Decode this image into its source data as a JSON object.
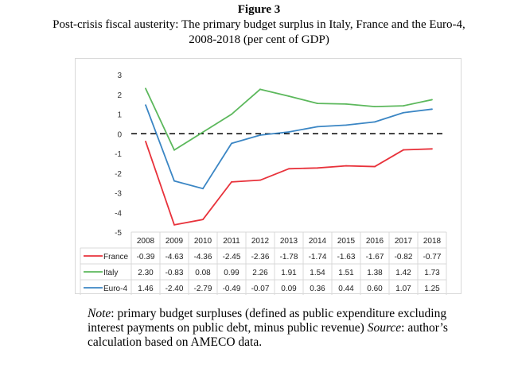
{
  "figure": {
    "label": "Figure 3",
    "title_line1": "Post-crisis fiscal austerity: The primary budget surplus in Italy, France and the Euro-4,",
    "title_line2": "2008-2018  (per cent of GDP)"
  },
  "note": {
    "note_label": "Note",
    "note_text": ": primary budget surpluses (defined as public expenditure excluding interest payments on public debt, minus public revenue) ",
    "source_label": "Source",
    "source_text": ": author’s calculation based on AMECO data."
  },
  "colors": {
    "France": "#e8323b",
    "Italy": "#5cb85c",
    "Euro-4": "#3b86c4",
    "zero_line": "#000000",
    "grid": "#d9d9d9"
  },
  "chart_data": {
    "type": "line",
    "title": "Post-crisis fiscal austerity: The primary budget surplus in Italy, France and the Euro-4, 2008-2018  (per cent of GDP)",
    "x": [
      "2008",
      "2009",
      "2010",
      "2011",
      "2012",
      "2013",
      "2014",
      "2015",
      "2016",
      "2017",
      "2018"
    ],
    "series": [
      {
        "name": "France",
        "values": [
          -0.39,
          -4.63,
          -4.36,
          -2.45,
          -2.36,
          -1.78,
          -1.74,
          -1.63,
          -1.67,
          -0.82,
          -0.77
        ]
      },
      {
        "name": "Italy",
        "values": [
          2.3,
          -0.83,
          0.08,
          0.99,
          2.26,
          1.91,
          1.54,
          1.51,
          1.38,
          1.42,
          1.73
        ]
      },
      {
        "name": "Euro-4",
        "values": [
          1.46,
          -2.4,
          -2.79,
          -0.49,
          -0.07,
          0.09,
          0.36,
          0.44,
          0.6,
          1.07,
          1.25
        ]
      }
    ],
    "yticks": [
      "3",
      "2",
      "1",
      "0",
      "-1",
      "-2",
      "-3",
      "-4",
      "-5"
    ],
    "ylim": [
      -5,
      3
    ],
    "zero_line": "dashed",
    "grid": false,
    "legend": "data-table-below",
    "table_values": {
      "France": [
        "-0.39",
        "-4.63",
        "-4.36",
        "-2.45",
        "-2.36",
        "-1.78",
        "-1.74",
        "-1.63",
        "-1.67",
        "-0.82",
        "-0.77"
      ],
      "Italy": [
        "2.30",
        "-0.83",
        "0.08",
        "0.99",
        "2.26",
        "1.91",
        "1.54",
        "1.51",
        "1.38",
        "1.42",
        "1.73"
      ],
      "Euro-4": [
        "1.46",
        "-2.40",
        "-2.79",
        "-0.49",
        "-0.07",
        "0.09",
        "0.36",
        "0.44",
        "0.60",
        "1.07",
        "1.25"
      ]
    }
  }
}
